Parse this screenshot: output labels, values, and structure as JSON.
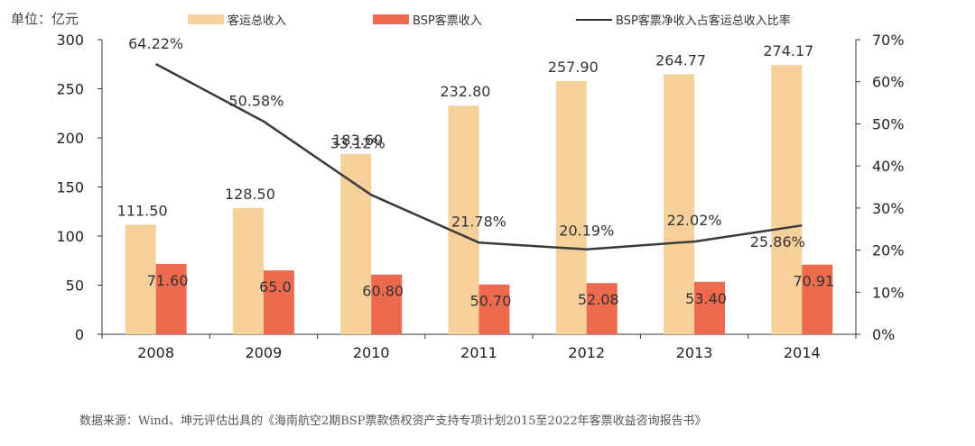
{
  "unit_label": "单位：亿元",
  "source": "数据来源：Wind、坤元评估出具的《海南航空2期BSP票款债权资产支持专项计划2015至2022年客票收益咨询报告书》",
  "colors": {
    "total": "#F6D09A",
    "bsp": "#EE6A4E",
    "ratio": "#3A3A3A",
    "axis": "#333333"
  },
  "chart_data": {
    "type": "bar",
    "categories": [
      "2008",
      "2009",
      "2010",
      "2011",
      "2012",
      "2013",
      "2014"
    ],
    "series": [
      {
        "name": "客运总收入",
        "type": "bar",
        "axis": "left",
        "values": [
          111.5,
          128.5,
          183.6,
          232.8,
          257.9,
          264.77,
          274.17
        ],
        "labels": [
          "111.50",
          "128.50",
          "183.60",
          "232.80",
          "257.90",
          "264.77",
          "274.17"
        ]
      },
      {
        "name": "BSP客票收入",
        "type": "bar",
        "axis": "left",
        "values": [
          71.6,
          65.0,
          60.8,
          50.7,
          52.08,
          53.4,
          70.91
        ],
        "labels": [
          "71.60",
          "65.0",
          "60.80",
          "50.70",
          "52.08",
          "53.40",
          "70.91"
        ]
      },
      {
        "name": "BSP客票净收入占客运总收入比率",
        "type": "line",
        "axis": "right",
        "values": [
          64.22,
          50.58,
          33.12,
          21.78,
          20.19,
          22.02,
          25.86
        ],
        "labels": [
          "64.22%",
          "50.58%",
          "33.12%",
          "21.78%",
          "20.19%",
          "22.02%",
          "25.86%"
        ]
      }
    ],
    "y_left": {
      "range": [
        0,
        300
      ],
      "ticks": [
        "0",
        "50",
        "100",
        "150",
        "200",
        "250",
        "300"
      ]
    },
    "y_right": {
      "range": [
        0,
        70
      ],
      "ticks": [
        "0%",
        "10%",
        "20%",
        "30%",
        "40%",
        "50%",
        "60%",
        "70%"
      ]
    },
    "grid": false,
    "legend": "top"
  }
}
